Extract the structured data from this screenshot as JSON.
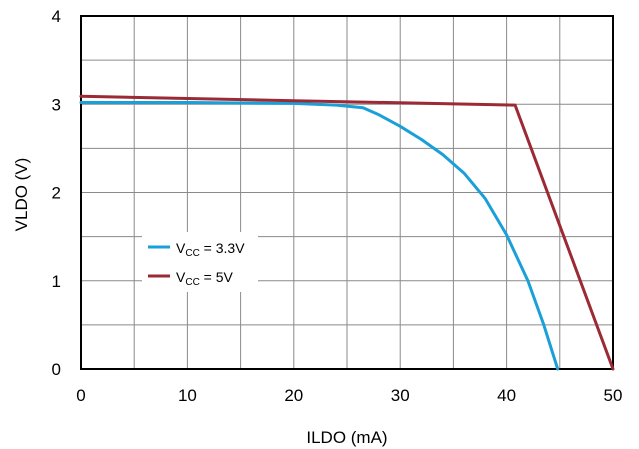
{
  "chart_data": {
    "type": "line",
    "xlabel": "ILDO (mA)",
    "ylabel": "VLDO (V)",
    "xlim": [
      0,
      50
    ],
    "ylim": [
      0,
      4
    ],
    "x_ticks": [
      "0",
      "10",
      "20",
      "30",
      "40",
      "50"
    ],
    "y_ticks": [
      "0",
      "1",
      "2",
      "3",
      "4"
    ],
    "grid": true,
    "legend_position": "middle-left",
    "series": [
      {
        "label_main": "V",
        "label_sub": "CC",
        "label_rest": " = 3.3V",
        "color": "#1a9fd9",
        "points": [
          [
            0,
            3.02
          ],
          [
            10,
            3.02
          ],
          [
            20,
            3.01
          ],
          [
            24,
            2.99
          ],
          [
            26.5,
            2.96
          ],
          [
            28,
            2.88
          ],
          [
            30,
            2.75
          ],
          [
            32,
            2.6
          ],
          [
            34,
            2.43
          ],
          [
            36,
            2.22
          ],
          [
            38,
            1.93
          ],
          [
            40,
            1.52
          ],
          [
            42,
            1.0
          ],
          [
            43.5,
            0.5
          ],
          [
            44.8,
            0.0
          ]
        ]
      },
      {
        "label_main": "V",
        "label_sub": "CC",
        "label_rest": " = 5V",
        "color": "#9b2a35",
        "points": [
          [
            0,
            3.09
          ],
          [
            20,
            3.04
          ],
          [
            40.8,
            2.99
          ],
          [
            50,
            0.0
          ]
        ]
      }
    ]
  }
}
